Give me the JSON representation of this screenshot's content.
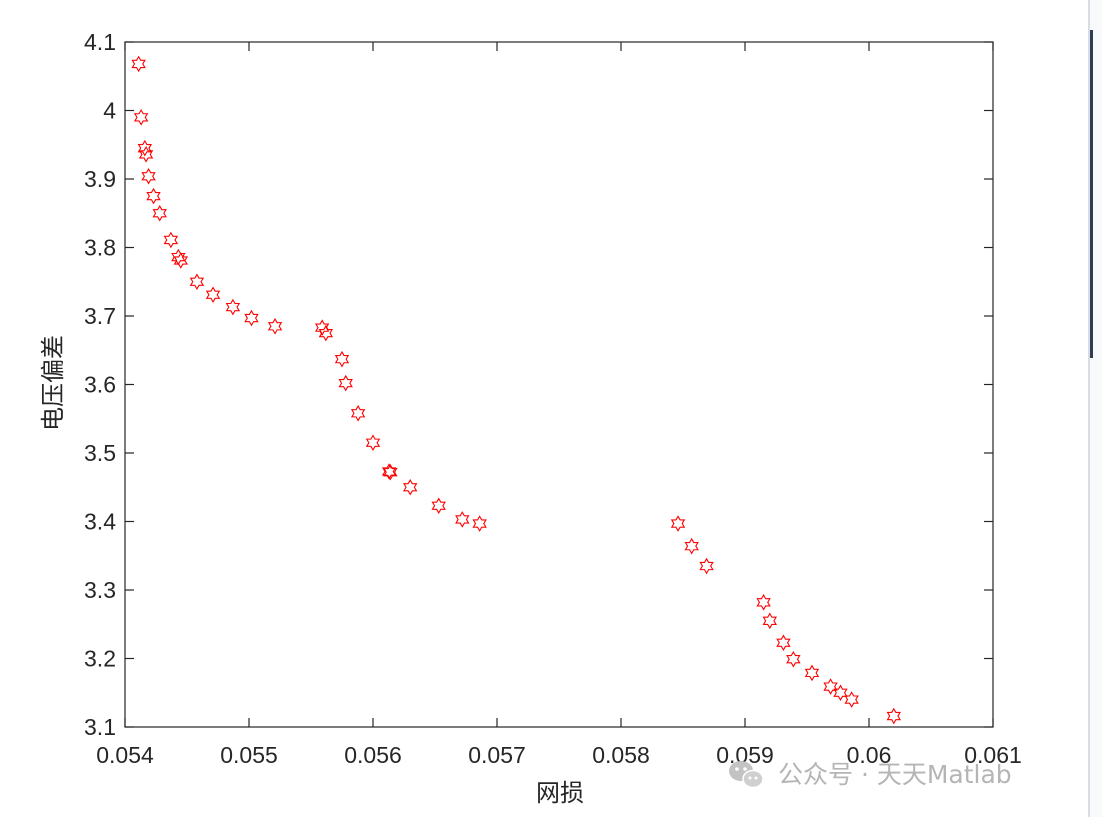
{
  "chart_data": {
    "type": "scatter",
    "title": "",
    "xlabel": "网损",
    "ylabel": "电压偏差",
    "xlim": [
      0.054,
      0.061
    ],
    "ylim": [
      3.1,
      4.1
    ],
    "xticks": [
      "0.054",
      "0.055",
      "0.056",
      "0.057",
      "0.058",
      "0.059",
      "0.06",
      "0.061"
    ],
    "yticks": [
      "3.1",
      "3.2",
      "3.3",
      "3.4",
      "3.5",
      "3.6",
      "3.7",
      "3.8",
      "3.9",
      "4",
      "4.1"
    ],
    "grid": false,
    "legend": "none",
    "marker": "hexagram",
    "marker_color": "#ff0000",
    "series": [
      {
        "points": [
          [
            0.05411,
            4.068
          ],
          [
            0.05413,
            3.99
          ],
          [
            0.05416,
            3.945
          ],
          [
            0.05417,
            3.936
          ],
          [
            0.05419,
            3.904
          ],
          [
            0.05423,
            3.875
          ],
          [
            0.05428,
            3.85
          ],
          [
            0.05437,
            3.811
          ],
          [
            0.05443,
            3.786
          ],
          [
            0.05445,
            3.781
          ],
          [
            0.05458,
            3.75
          ],
          [
            0.05471,
            3.731
          ],
          [
            0.05487,
            3.713
          ],
          [
            0.05502,
            3.697
          ],
          [
            0.05521,
            3.685
          ],
          [
            0.05559,
            3.683
          ],
          [
            0.05562,
            3.675
          ],
          [
            0.05575,
            3.637
          ],
          [
            0.05578,
            3.602
          ],
          [
            0.05588,
            3.558
          ],
          [
            0.056,
            3.515
          ],
          [
            0.05613,
            3.473
          ],
          [
            0.05614,
            3.472
          ],
          [
            0.0563,
            3.45
          ],
          [
            0.05653,
            3.423
          ],
          [
            0.05672,
            3.403
          ],
          [
            0.05686,
            3.397
          ],
          [
            0.05846,
            3.397
          ],
          [
            0.05857,
            3.364
          ],
          [
            0.05869,
            3.335
          ],
          [
            0.05915,
            3.282
          ],
          [
            0.0592,
            3.255
          ],
          [
            0.05931,
            3.223
          ],
          [
            0.05939,
            3.199
          ],
          [
            0.05954,
            3.179
          ],
          [
            0.05969,
            3.159
          ],
          [
            0.05977,
            3.15
          ],
          [
            0.05986,
            3.14
          ],
          [
            0.0602,
            3.116
          ]
        ]
      }
    ]
  },
  "watermark": {
    "text": "公众号 · 天天Matlab",
    "icon": "wechat-icon"
  },
  "colors": {
    "axis": "#262626",
    "marker": "#ff0000",
    "watermark": "#b5b5b5"
  }
}
